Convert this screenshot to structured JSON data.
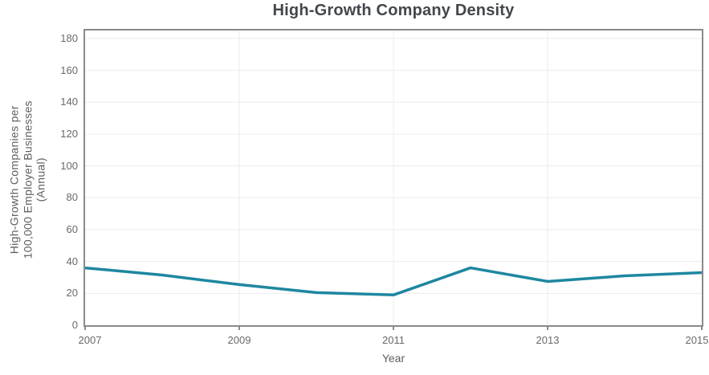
{
  "chart": {
    "title": "High-Growth Company Density",
    "x_axis_label": "Year",
    "y_axis_label_lines": {
      "line1": "High-Growth Companies per",
      "line2": "100,000 Employer Businesses",
      "line3": "(Annual)"
    }
  },
  "chart_data": {
    "type": "line",
    "title": "High-Growth Company Density",
    "xlabel": "Year",
    "ylabel": "High-Growth Companies per 100,000 Employer Businesses (Annual)",
    "x": [
      2007,
      2008,
      2009,
      2010,
      2011,
      2012,
      2013,
      2014,
      2015
    ],
    "values": [
      36,
      31.5,
      25.5,
      20.5,
      19,
      36,
      27.5,
      31,
      33
    ],
    "series_name": "High-Growth Company Density",
    "xlim": [
      2007,
      2015
    ],
    "ylim": [
      0,
      185
    ],
    "xticks": [
      2007,
      2009,
      2011,
      2013,
      2015
    ],
    "yticks": [
      0,
      20,
      40,
      60,
      80,
      100,
      120,
      140,
      160,
      180
    ],
    "grid": true,
    "legend": "none",
    "colors": {
      "line": "#1e87a0",
      "axis_border": "#8a8a8a",
      "grid": "#ebebeb",
      "tick_label": "#696969",
      "axis_title": "#5f5f5f",
      "chart_title": "#43474c"
    }
  }
}
